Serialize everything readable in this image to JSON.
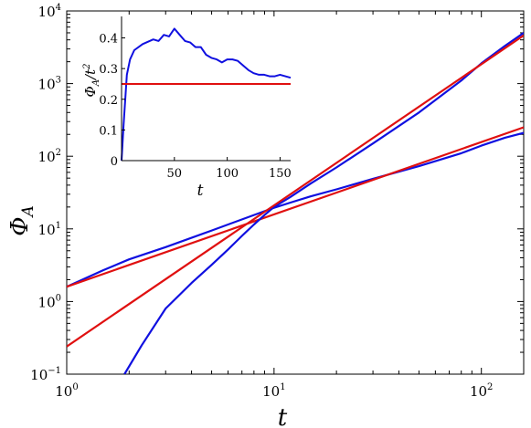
{
  "chart_data": [
    {
      "type": "line",
      "xlabel": "t",
      "ylabel": "Φ_A",
      "xscale": "log",
      "yscale": "log",
      "xlim": [
        1,
        160
      ],
      "ylim": [
        0.1,
        10000
      ],
      "xticks": [
        {
          "value": 1,
          "base": "10",
          "exp": "0"
        },
        {
          "value": 10,
          "base": "10",
          "exp": "1"
        },
        {
          "value": 100,
          "base": "10",
          "exp": "2"
        }
      ],
      "yticks": [
        {
          "value": 0.1,
          "base": "10",
          "exp": "−1"
        },
        {
          "value": 1,
          "base": "10",
          "exp": "0"
        },
        {
          "value": 10,
          "base": "10",
          "exp": "1"
        },
        {
          "value": 100,
          "base": "10",
          "exp": "2"
        },
        {
          "value": 1000,
          "base": "10",
          "exp": "3"
        },
        {
          "value": 10000,
          "base": "10",
          "exp": "4"
        }
      ],
      "grid": false,
      "colors": {
        "data": "#1010e0",
        "fit": "#e01010"
      },
      "series": [
        {
          "color": "#1010e0",
          "x": [
            1,
            1.5,
            2,
            3,
            5,
            8,
            10,
            12,
            15,
            20,
            30,
            50,
            80,
            100,
            130,
            160
          ],
          "y": [
            1.6,
            2.7,
            3.8,
            5.6,
            9.5,
            15.5,
            19.5,
            23,
            28,
            35,
            49,
            73,
            110,
            140,
            180,
            210
          ]
        },
        {
          "color": "#e01010",
          "x": [
            1,
            160
          ],
          "y": [
            1.6,
            250
          ]
        },
        {
          "color": "#1010e0",
          "x": [
            1.9,
            2.3,
            3,
            4,
            5,
            6,
            7,
            8,
            9,
            10,
            12,
            15,
            20,
            30,
            50,
            80,
            100,
            130,
            160
          ],
          "y": [
            0.1,
            0.25,
            0.8,
            1.8,
            3.2,
            5.2,
            8,
            11.5,
            15.5,
            20,
            27.5,
            42,
            70,
            150,
            400,
            1100,
            1900,
            3300,
            5000
          ]
        },
        {
          "color": "#e01010",
          "x": [
            1,
            160
          ],
          "y": [
            0.24,
            4600
          ]
        }
      ]
    },
    {
      "type": "line",
      "inset": true,
      "xlabel": "t",
      "ylabel": "Φ_A/t²",
      "xlim": [
        0,
        160
      ],
      "ylim": [
        0,
        0.47
      ],
      "xticks": [
        "50",
        "100",
        "150"
      ],
      "yticks": [
        "0",
        "0.1",
        "0.2",
        "0.3",
        "0.4"
      ],
      "series": [
        {
          "color": "#1010e0",
          "x": [
            0,
            2,
            5,
            8,
            12,
            20,
            30,
            35,
            40,
            45,
            50,
            55,
            60,
            65,
            70,
            75,
            80,
            85,
            90,
            95,
            100,
            105,
            110,
            115,
            120,
            125,
            130,
            135,
            140,
            145,
            150,
            155,
            160
          ],
          "y": [
            0,
            0.12,
            0.28,
            0.33,
            0.36,
            0.38,
            0.395,
            0.39,
            0.41,
            0.405,
            0.43,
            0.41,
            0.39,
            0.385,
            0.37,
            0.37,
            0.345,
            0.335,
            0.33,
            0.32,
            0.33,
            0.33,
            0.325,
            0.31,
            0.295,
            0.285,
            0.28,
            0.28,
            0.275,
            0.275,
            0.28,
            0.275,
            0.27
          ]
        },
        {
          "color": "#e01010",
          "x": [
            0,
            160
          ],
          "y": [
            0.25,
            0.25
          ]
        }
      ]
    }
  ]
}
